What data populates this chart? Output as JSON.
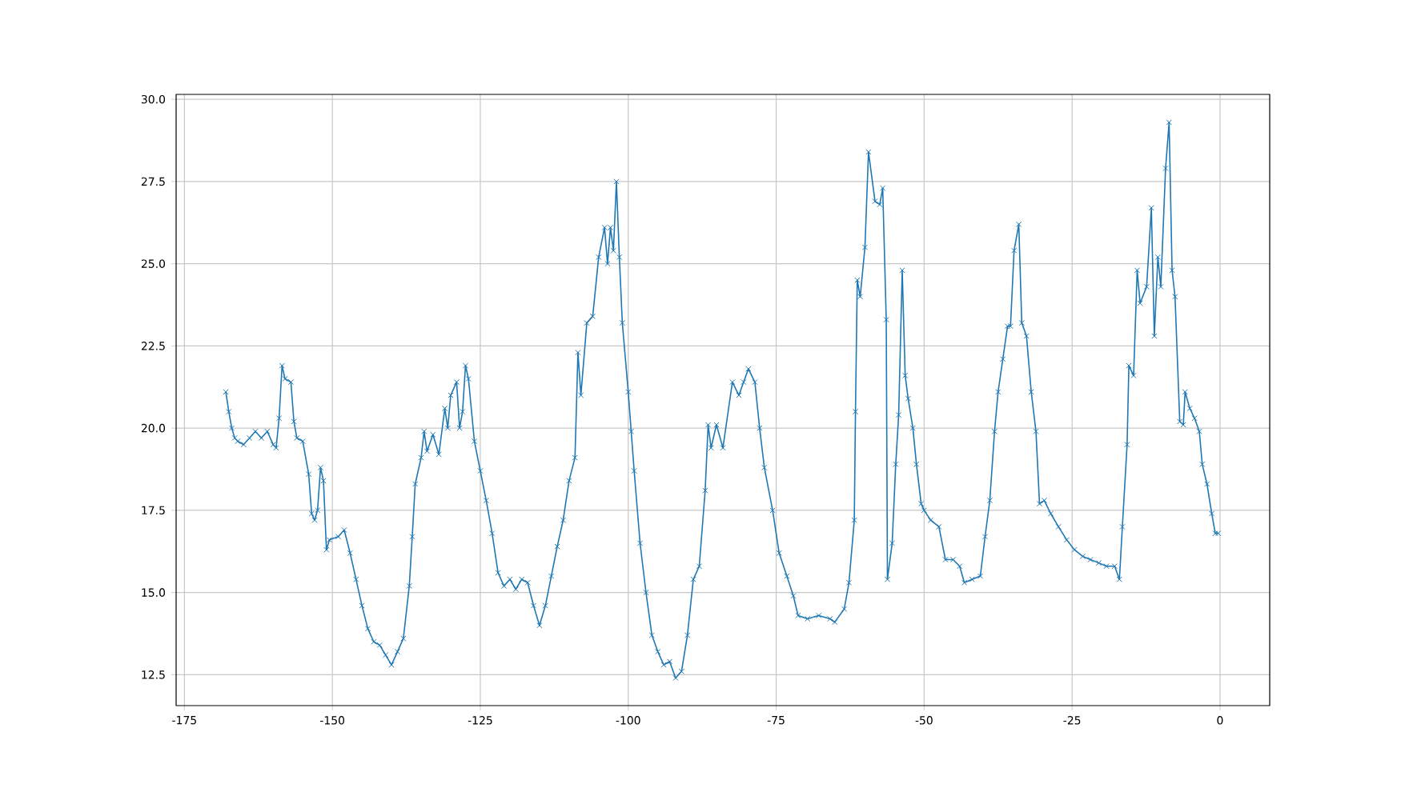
{
  "chart_data": {
    "type": "line",
    "marker": "cross",
    "grid": true,
    "xlim": [
      -176.4,
      8.4
    ],
    "ylim": [
      11.56,
      30.15
    ],
    "xticks": [
      -175,
      -150,
      -125,
      -100,
      -75,
      -50,
      -25,
      0
    ],
    "yticks": [
      12.5,
      {
        "value": 15,
        "label": "15.0"
      },
      17.5,
      {
        "value": 20,
        "label": "20.0"
      },
      22.5,
      {
        "value": 25,
        "label": "25.0"
      },
      27.5,
      {
        "value": 30,
        "label": "30.0"
      }
    ],
    "series": [
      {
        "color": "#1f77b4",
        "x": [
          -168,
          -167.5,
          -167,
          -166.5,
          -166,
          -165,
          -164,
          -163,
          -162,
          -161,
          -160,
          -159.5,
          -159,
          -158.5,
          -158,
          -157,
          -156.5,
          -156,
          -155,
          -154,
          -153.5,
          -153,
          -152.5,
          -152,
          -151.5,
          -151,
          -150.5,
          -149,
          -148,
          -147,
          -146,
          -145,
          -144,
          -143,
          -142,
          -141,
          -140,
          -139,
          -138,
          -137,
          -136.5,
          -136,
          -135,
          -134.5,
          -134,
          -133,
          -132,
          -131,
          -130.5,
          -130,
          -129,
          -128.5,
          -128,
          -127.5,
          -127,
          -126,
          -125,
          -124,
          -123,
          -122,
          -121,
          -120,
          -119,
          -118,
          -117,
          -116,
          -115,
          -114,
          -113,
          -112,
          -111,
          -110,
          -109,
          -108.5,
          -108,
          -107,
          -106,
          -105,
          -104,
          -103.5,
          -103,
          -102.5,
          -102,
          -101.5,
          -101,
          -100,
          -99.5,
          -99,
          -98,
          -97,
          -96,
          -95,
          -94,
          -93,
          -92,
          -91,
          -90,
          -89,
          -88,
          -87,
          -86.5,
          -86,
          -85.1,
          -84.0,
          -82.4,
          -81.3,
          -80.5,
          -79.7,
          -78.6,
          -77.8,
          -77.0,
          -75.6,
          -74.5,
          -73.2,
          -72.1,
          -71.3,
          -69.7,
          -67.8,
          -65.9,
          -65.1,
          -63.5,
          -62.7,
          -61.8,
          -61.6,
          -61.3,
          -60.8,
          -60.0,
          -59.4,
          -58.3,
          -57.5,
          -57.0,
          -56.4,
          -56.2,
          -55.4,
          -54.8,
          -54.3,
          -53.7,
          -53.2,
          -52.7,
          -51.9,
          -51.3,
          -50.5,
          -50.0,
          -48.9,
          -47.5,
          -46.4,
          -45.1,
          -44.0,
          -43.2,
          -41.9,
          -40.5,
          -39.7,
          -38.9,
          -38.1,
          -37.5,
          -36.7,
          -35.9,
          -35.4,
          -34.8,
          -34.0,
          -33.5,
          -32.7,
          -31.9,
          -31.1,
          -30.5,
          -29.7,
          -28.6,
          -27.3,
          -25.9,
          -24.6,
          -23.2,
          -21.9,
          -20.5,
          -19.2,
          -17.8,
          -17.0,
          -16.5,
          -15.7,
          -15.4,
          -14.6,
          -14.0,
          -13.5,
          -12.4,
          -11.6,
          -11.1,
          -10.5,
          -10.0,
          -9.2,
          -8.6,
          -8.1,
          -7.6,
          -6.8,
          -6.2,
          -5.9,
          -5.1,
          -4.3,
          -3.5,
          -3.0,
          -2.2,
          -1.4,
          -0.8,
          -0.3
        ],
        "values": [
          21.1,
          20.5,
          20.0,
          19.7,
          19.6,
          19.5,
          19.7,
          19.9,
          19.7,
          19.9,
          19.5,
          19.4,
          20.3,
          21.9,
          21.5,
          21.4,
          20.2,
          19.7,
          19.6,
          18.6,
          17.4,
          17.2,
          17.5,
          18.8,
          18.4,
          16.3,
          16.6,
          16.7,
          16.9,
          16.2,
          15.4,
          14.6,
          13.9,
          13.5,
          13.4,
          13.1,
          12.8,
          13.2,
          13.6,
          15.2,
          16.7,
          18.3,
          19.1,
          19.9,
          19.3,
          19.8,
          19.2,
          20.6,
          20.0,
          21.0,
          21.4,
          20.0,
          20.5,
          21.9,
          21.5,
          19.6,
          18.7,
          17.8,
          16.8,
          15.6,
          15.2,
          15.4,
          15.1,
          15.4,
          15.3,
          14.6,
          14.0,
          14.6,
          15.5,
          16.4,
          17.2,
          18.4,
          19.1,
          22.3,
          21.0,
          23.2,
          23.4,
          25.2,
          26.1,
          25.0,
          26.1,
          25.4,
          27.5,
          25.2,
          23.2,
          21.1,
          19.9,
          18.7,
          16.5,
          15.0,
          13.7,
          13.2,
          12.8,
          12.9,
          12.4,
          12.6,
          13.7,
          15.4,
          15.8,
          18.1,
          20.1,
          19.4,
          20.1,
          19.4,
          21.4,
          21.0,
          21.4,
          21.8,
          21.4,
          20.0,
          18.8,
          17.5,
          16.2,
          15.5,
          14.9,
          14.3,
          14.2,
          14.3,
          14.2,
          14.1,
          14.5,
          15.3,
          17.2,
          20.5,
          24.5,
          24.0,
          25.5,
          28.4,
          26.9,
          26.8,
          27.3,
          23.3,
          15.4,
          16.5,
          18.9,
          20.4,
          24.8,
          21.6,
          20.9,
          20.0,
          18.9,
          17.7,
          17.5,
          17.2,
          17.0,
          16.0,
          16.0,
          15.8,
          15.3,
          15.4,
          15.5,
          16.7,
          17.8,
          19.9,
          21.1,
          22.1,
          23.1,
          23.1,
          25.4,
          26.2,
          23.2,
          22.8,
          21.1,
          19.9,
          17.7,
          17.8,
          17.4,
          17.0,
          16.6,
          16.3,
          16.1,
          16.0,
          15.9,
          15.8,
          15.8,
          15.4,
          17.0,
          19.5,
          21.9,
          21.6,
          24.8,
          23.8,
          24.3,
          26.7,
          22.8,
          25.2,
          24.3,
          27.9,
          29.3,
          24.8,
          24.0,
          20.2,
          20.1,
          21.1,
          20.6,
          20.3,
          19.9,
          18.9,
          18.3,
          17.4,
          16.8,
          16.8
        ]
      }
    ]
  }
}
